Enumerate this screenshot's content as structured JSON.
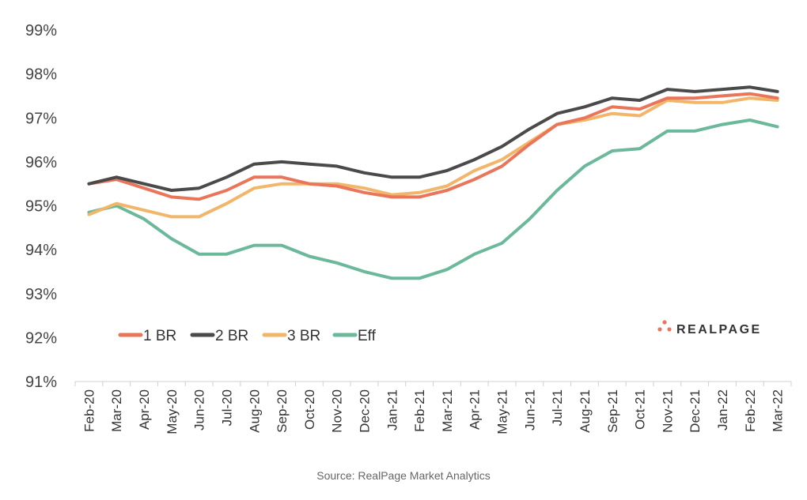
{
  "chart_data": {
    "type": "line",
    "categories": [
      "Feb-20",
      "Mar-20",
      "Apr-20",
      "May-20",
      "Jun-20",
      "Jul-20",
      "Aug-20",
      "Sep-20",
      "Oct-20",
      "Nov-20",
      "Dec-20",
      "Jan-21",
      "Feb-21",
      "Mar-21",
      "Apr-21",
      "May-21",
      "Jun-21",
      "Jul-21",
      "Aug-21",
      "Sep-21",
      "Oct-21",
      "Nov-21",
      "Dec-21",
      "Jan-22",
      "Feb-22",
      "Mar-22"
    ],
    "y_ticks": [
      "91%",
      "92%",
      "93%",
      "94%",
      "95%",
      "96%",
      "97%",
      "98%",
      "99%"
    ],
    "ylim": [
      91,
      99
    ],
    "grid": false,
    "legend_position": "bottom-left",
    "series": [
      {
        "name": "1 BR",
        "color": "#e9765a",
        "values": [
          95.5,
          95.6,
          95.4,
          95.2,
          95.15,
          95.35,
          95.65,
          95.65,
          95.5,
          95.45,
          95.3,
          95.2,
          95.2,
          95.35,
          95.6,
          95.9,
          96.4,
          96.85,
          97.0,
          97.25,
          97.2,
          97.45,
          97.45,
          97.5,
          97.55,
          97.45
        ]
      },
      {
        "name": "2 BR",
        "color": "#4a4a4a",
        "values": [
          95.5,
          95.65,
          95.5,
          95.35,
          95.4,
          95.65,
          95.95,
          96.0,
          95.95,
          95.9,
          95.75,
          95.65,
          95.65,
          95.8,
          96.05,
          96.35,
          96.75,
          97.1,
          97.25,
          97.45,
          97.4,
          97.65,
          97.6,
          97.65,
          97.7,
          97.6
        ]
      },
      {
        "name": "3 BR",
        "color": "#f2b66b",
        "values": [
          94.8,
          95.05,
          94.9,
          94.75,
          94.75,
          95.05,
          95.4,
          95.5,
          95.5,
          95.5,
          95.4,
          95.25,
          95.3,
          95.45,
          95.8,
          96.05,
          96.45,
          96.85,
          96.95,
          97.1,
          97.05,
          97.4,
          97.35,
          97.35,
          97.45,
          97.4
        ]
      },
      {
        "name": "Eff",
        "color": "#6bb89a",
        "values": [
          94.85,
          95.0,
          94.7,
          94.25,
          93.9,
          93.9,
          94.1,
          94.1,
          93.85,
          93.7,
          93.5,
          93.35,
          93.35,
          93.55,
          93.9,
          94.15,
          94.7,
          95.35,
          95.9,
          96.25,
          96.3,
          96.7,
          96.7,
          96.85,
          96.95,
          96.8
        ]
      }
    ],
    "source": "Source: RealPage Market Analytics"
  },
  "brand": {
    "text": "REALPAGE",
    "dot_color": "#e9765a"
  }
}
